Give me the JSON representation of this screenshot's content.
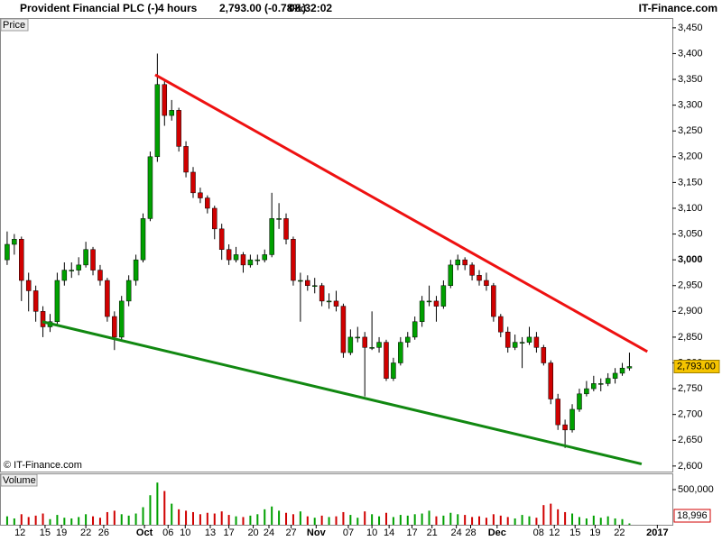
{
  "chart_data": {
    "type": "candlestick",
    "title": "Provident Financial PLC (-)",
    "interval": "4 hours",
    "quote": "2,793.00 (-0.78%)",
    "time": "08:32:02",
    "source": "IT-Finance.com",
    "watermark": "© IT-Finance.com",
    "price_label": "Price",
    "volume_label": "Volume",
    "up_color": "#00a000",
    "down_color": "#d00000",
    "wick_color": "#000000",
    "xlim": [
      -1,
      93
    ],
    "xticks": [
      {
        "value": 1.8,
        "label": "12"
      },
      {
        "value": 5.3,
        "label": "15"
      },
      {
        "value": 7.6,
        "label": "19"
      },
      {
        "value": 11,
        "label": "22"
      },
      {
        "value": 13.5,
        "label": "26"
      },
      {
        "value": 19.2,
        "label": "Oct"
      },
      {
        "value": 22.5,
        "label": "06"
      },
      {
        "value": 24.9,
        "label": "10"
      },
      {
        "value": 28.4,
        "label": "13"
      },
      {
        "value": 31,
        "label": "17"
      },
      {
        "value": 34.4,
        "label": "20"
      },
      {
        "value": 36.6,
        "label": "24"
      },
      {
        "value": 39.7,
        "label": "27"
      },
      {
        "value": 43.2,
        "label": "Nov"
      },
      {
        "value": 47.7,
        "label": "07"
      },
      {
        "value": 51,
        "label": "10"
      },
      {
        "value": 53.4,
        "label": "14"
      },
      {
        "value": 56.6,
        "label": "17"
      },
      {
        "value": 59.4,
        "label": "21"
      },
      {
        "value": 62.8,
        "label": "24"
      },
      {
        "value": 64.8,
        "label": "28"
      },
      {
        "value": 68.5,
        "label": "Dec"
      },
      {
        "value": 74.3,
        "label": "08"
      },
      {
        "value": 76.5,
        "label": "12"
      },
      {
        "value": 79.4,
        "label": "15"
      },
      {
        "value": 82.2,
        "label": "19"
      },
      {
        "value": 85.6,
        "label": "22"
      },
      {
        "value": 90.9,
        "label": "2017"
      }
    ],
    "ylim": [
      2591,
      3469
    ],
    "yticks": [
      {
        "value": 2600,
        "label": "2,600"
      },
      {
        "value": 2650,
        "label": "2,650"
      },
      {
        "value": 2700,
        "label": "2,700"
      },
      {
        "value": 2750,
        "label": "2,750"
      },
      {
        "value": 2800,
        "label": "2,800"
      },
      {
        "value": 2850,
        "label": "2,850"
      },
      {
        "value": 2900,
        "label": "2,900"
      },
      {
        "value": 2950,
        "label": "2,950"
      },
      {
        "value": 3000,
        "label": "3,000"
      },
      {
        "value": 3050,
        "label": "3,050"
      },
      {
        "value": 3100,
        "label": "3,100"
      },
      {
        "value": 3150,
        "label": "3,150"
      },
      {
        "value": 3200,
        "label": "3,200"
      },
      {
        "value": 3250,
        "label": "3,250"
      },
      {
        "value": 3300,
        "label": "3,300"
      },
      {
        "value": 3350,
        "label": "3,350"
      },
      {
        "value": 3400,
        "label": "3,400"
      },
      {
        "value": 3450,
        "label": "3,450"
      }
    ],
    "last_price_label": "2,793.00",
    "ohlc": [
      [
        3000,
        3055,
        2990,
        3030
      ],
      [
        3030,
        3050,
        3010,
        3040
      ],
      [
        3040,
        3045,
        2920,
        2960
      ],
      [
        2960,
        2975,
        2900,
        2940
      ],
      [
        2940,
        2950,
        2880,
        2900
      ],
      [
        2900,
        2910,
        2850,
        2870
      ],
      [
        2870,
        2895,
        2860,
        2880
      ],
      [
        2880,
        2975,
        2875,
        2960
      ],
      [
        2960,
        2995,
        2950,
        2980
      ],
      [
        2980,
        2995,
        2965,
        2980
      ],
      [
        2980,
        3005,
        2970,
        2990
      ],
      [
        2990,
        3035,
        2985,
        3020
      ],
      [
        3020,
        3025,
        2970,
        2980
      ],
      [
        2980,
        2990,
        2950,
        2960
      ],
      [
        2960,
        2965,
        2880,
        2890
      ],
      [
        2890,
        2900,
        2825,
        2850
      ],
      [
        2850,
        2930,
        2845,
        2920
      ],
      [
        2920,
        2970,
        2910,
        2960
      ],
      [
        2960,
        3010,
        2950,
        3000
      ],
      [
        3000,
        3090,
        2995,
        3080
      ],
      [
        3080,
        3210,
        3075,
        3200
      ],
      [
        3200,
        3400,
        3190,
        3340
      ],
      [
        3340,
        3350,
        3260,
        3280
      ],
      [
        3280,
        3310,
        3270,
        3290
      ],
      [
        3290,
        3295,
        3210,
        3220
      ],
      [
        3220,
        3230,
        3160,
        3170
      ],
      [
        3170,
        3180,
        3120,
        3130
      ],
      [
        3130,
        3140,
        3110,
        3120
      ],
      [
        3120,
        3125,
        3090,
        3100
      ],
      [
        3100,
        3105,
        3040,
        3060
      ],
      [
        3060,
        3070,
        3000,
        3020
      ],
      [
        3020,
        3030,
        2990,
        3000
      ],
      [
        3000,
        3025,
        2995,
        3010
      ],
      [
        3010,
        3015,
        2975,
        2990
      ],
      [
        2990,
        3010,
        2985,
        3000
      ],
      [
        3000,
        3010,
        2990,
        3000
      ],
      [
        3000,
        3020,
        2995,
        3010
      ],
      [
        3010,
        3130,
        3005,
        3080
      ],
      [
        3080,
        3110,
        3060,
        3080
      ],
      [
        3080,
        3090,
        3030,
        3040
      ],
      [
        3040,
        3045,
        2950,
        2960
      ],
      [
        2960,
        2975,
        2880,
        2960
      ],
      [
        2960,
        2970,
        2940,
        2950
      ],
      [
        2950,
        2965,
        2935,
        2950
      ],
      [
        2950,
        2955,
        2910,
        2920
      ],
      [
        2920,
        2935,
        2905,
        2920
      ],
      [
        2920,
        2940,
        2900,
        2910
      ],
      [
        2910,
        2915,
        2810,
        2820
      ],
      [
        2820,
        2865,
        2815,
        2850
      ],
      [
        2850,
        2870,
        2840,
        2850
      ],
      [
        2850,
        2860,
        2735,
        2830
      ],
      [
        2830,
        2900,
        2825,
        2830
      ],
      [
        2830,
        2850,
        2820,
        2840
      ],
      [
        2840,
        2845,
        2765,
        2770
      ],
      [
        2770,
        2810,
        2765,
        2800
      ],
      [
        2800,
        2850,
        2795,
        2840
      ],
      [
        2840,
        2860,
        2830,
        2850
      ],
      [
        2850,
        2890,
        2845,
        2880
      ],
      [
        2880,
        2930,
        2870,
        2920
      ],
      [
        2920,
        2950,
        2910,
        2920
      ],
      [
        2920,
        2930,
        2880,
        2910
      ],
      [
        2910,
        2960,
        2905,
        2950
      ],
      [
        2950,
        3000,
        2945,
        2990
      ],
      [
        2990,
        3010,
        2980,
        3000
      ],
      [
        3000,
        3005,
        2980,
        2990
      ],
      [
        2990,
        2995,
        2960,
        2970
      ],
      [
        2970,
        2980,
        2950,
        2960
      ],
      [
        2960,
        2975,
        2940,
        2950
      ],
      [
        2950,
        2955,
        2880,
        2890
      ],
      [
        2890,
        2895,
        2850,
        2860
      ],
      [
        2860,
        2870,
        2820,
        2830
      ],
      [
        2830,
        2855,
        2825,
        2840
      ],
      [
        2840,
        2850,
        2790,
        2840
      ],
      [
        2840,
        2870,
        2835,
        2850
      ],
      [
        2850,
        2860,
        2820,
        2830
      ],
      [
        2830,
        2835,
        2795,
        2800
      ],
      [
        2800,
        2805,
        2720,
        2730
      ],
      [
        2730,
        2740,
        2670,
        2680
      ],
      [
        2680,
        2690,
        2635,
        2670
      ],
      [
        2670,
        2720,
        2665,
        2710
      ],
      [
        2710,
        2750,
        2705,
        2740
      ],
      [
        2740,
        2765,
        2735,
        2750
      ],
      [
        2750,
        2775,
        2745,
        2760
      ],
      [
        2760,
        2770,
        2745,
        2760
      ],
      [
        2760,
        2780,
        2755,
        2770
      ],
      [
        2770,
        2790,
        2760,
        2780
      ],
      [
        2780,
        2800,
        2775,
        2790
      ],
      [
        2790,
        2820,
        2785,
        2793
      ]
    ],
    "trendlines": [
      {
        "color": "#ee1111",
        "x": [
          20.7,
          89.5
        ],
        "y": [
          3359,
          2822
        ]
      },
      {
        "color": "#118811",
        "x": [
          4.9,
          88.7
        ],
        "y": [
          2880,
          2604
        ]
      }
    ],
    "volume": {
      "ylim": [
        0,
        718000
      ],
      "yticks": [
        {
          "value": 500000,
          "label": "500,000"
        }
      ],
      "last_label": "18,996",
      "values": [
        120000,
        90000,
        150000,
        110000,
        130000,
        160000,
        80000,
        140000,
        100000,
        90000,
        110000,
        150000,
        120000,
        100000,
        180000,
        200000,
        150000,
        130000,
        160000,
        250000,
        420000,
        600000,
        480000,
        300000,
        220000,
        200000,
        180000,
        150000,
        170000,
        160000,
        190000,
        140000,
        120000,
        110000,
        130000,
        150000,
        220000,
        260000,
        200000,
        170000,
        150000,
        190000,
        120000,
        100000,
        130000,
        110000,
        120000,
        180000,
        140000,
        100000,
        190000,
        150000,
        120000,
        170000,
        110000,
        140000,
        130000,
        150000,
        160000,
        200000,
        120000,
        130000,
        170000,
        150000,
        140000,
        110000,
        120000,
        100000,
        150000,
        130000,
        110000,
        90000,
        140000,
        120000,
        100000,
        280000,
        300000,
        220000,
        180000,
        160000,
        110000,
        90000,
        130000,
        100000,
        120000,
        90000,
        80000,
        18996
      ]
    }
  }
}
